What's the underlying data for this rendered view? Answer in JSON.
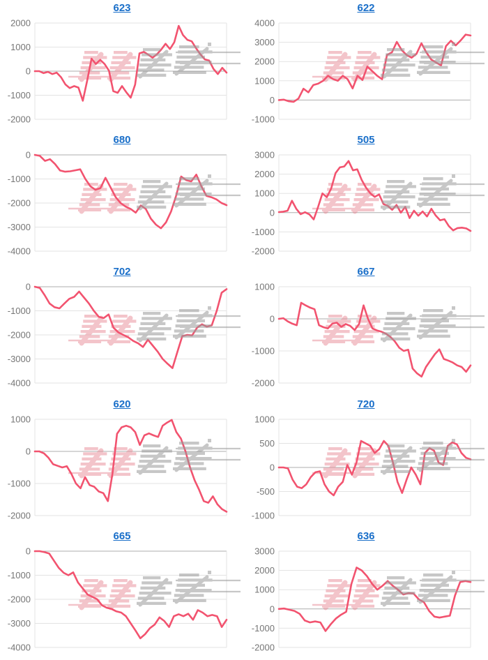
{
  "page": {
    "background": "#ffffff"
  },
  "style": {
    "line_color": "#f2536f",
    "grid_color": "#e3e3e3",
    "baseline_color": "#aeaeae",
    "axis_label_color": "#767676",
    "title_color": "#1a6fc9"
  },
  "watermark": {
    "text": "みんレポ",
    "pink_color": "#e98b97",
    "gray_color": "#9a9a9a"
  },
  "charts": [
    {
      "title": "623",
      "type": "line",
      "y_min": -2000,
      "y_max": 2000,
      "y_step": 1000,
      "values": [
        0,
        0,
        -80,
        -30,
        -120,
        -60,
        -250,
        -550,
        -700,
        -620,
        -680,
        -1230,
        -400,
        520,
        300,
        470,
        300,
        20,
        -830,
        -900,
        -620,
        -880,
        -1100,
        -560,
        740,
        800,
        690,
        560,
        700,
        900,
        1140,
        920,
        1200,
        1880,
        1500,
        1300,
        1240,
        950,
        700,
        490,
        440,
        90,
        -120,
        140,
        -60
      ]
    },
    {
      "title": "622",
      "type": "line",
      "y_min": -1000,
      "y_max": 4000,
      "y_step": 1000,
      "values": [
        0,
        20,
        -60,
        -90,
        80,
        590,
        400,
        780,
        850,
        1000,
        1260,
        1090,
        1000,
        1260,
        1080,
        600,
        1260,
        1040,
        1740,
        1500,
        1260,
        1080,
        2340,
        2480,
        3020,
        2590,
        2340,
        2200,
        2400,
        2950,
        2480,
        2100,
        1950,
        1800,
        2800,
        3080,
        2840,
        3100,
        3400,
        3350
      ]
    },
    {
      "title": "680",
      "type": "line",
      "y_min": -4000,
      "y_max": 0,
      "y_step": 1000,
      "values": [
        0,
        -40,
        -250,
        -180,
        -380,
        -650,
        -700,
        -680,
        -640,
        -600,
        -1000,
        -1300,
        -1450,
        -1380,
        -950,
        -1350,
        -1750,
        -2000,
        -2150,
        -2250,
        -2400,
        -2100,
        -2250,
        -2650,
        -2900,
        -3050,
        -2800,
        -2350,
        -1700,
        -900,
        -1050,
        -1100,
        -820,
        -1300,
        -1700,
        -1760,
        -1850,
        -2000,
        -2090
      ]
    },
    {
      "title": "505",
      "type": "line",
      "y_min": -2000,
      "y_max": 3000,
      "y_step": 1000,
      "values": [
        30,
        50,
        100,
        620,
        200,
        -80,
        20,
        -90,
        -350,
        300,
        1000,
        800,
        1250,
        2050,
        2350,
        2400,
        2680,
        2200,
        2250,
        1700,
        1300,
        1000,
        820,
        950,
        450,
        350,
        150,
        400,
        0,
        300,
        -280,
        100,
        -160,
        60,
        -200,
        200,
        -150,
        -400,
        -340,
        -700,
        -920,
        -800,
        -780,
        -820,
        -950
      ]
    },
    {
      "title": "702",
      "type": "line",
      "y_min": -4000,
      "y_max": 0,
      "y_step": 1000,
      "values": [
        0,
        -50,
        -350,
        -700,
        -850,
        -900,
        -700,
        -500,
        -420,
        -200,
        -450,
        -700,
        -1000,
        -1250,
        -1300,
        -1150,
        -1700,
        -1900,
        -2000,
        -2100,
        -2250,
        -2350,
        -2500,
        -2200,
        -2450,
        -2700,
        -3000,
        -3200,
        -3380,
        -2700,
        -2050,
        -2000,
        -2020,
        -1700,
        -1560,
        -1660,
        -1600,
        -1000,
        -250,
        -100
      ]
    },
    {
      "title": "667",
      "type": "line",
      "y_min": -2000,
      "y_max": 1000,
      "y_step": 1000,
      "values": [
        0,
        20,
        -80,
        -150,
        -200,
        500,
        420,
        350,
        300,
        -200,
        -260,
        -300,
        -150,
        -120,
        -250,
        -160,
        -220,
        -350,
        -160,
        420,
        0,
        -300,
        -360,
        -400,
        -460,
        -560,
        -700,
        -900,
        -1000,
        -960,
        -1550,
        -1700,
        -1800,
        -1500,
        -1300,
        -1100,
        -950,
        -1250,
        -1300,
        -1360,
        -1450,
        -1500,
        -1650,
        -1450
      ]
    },
    {
      "title": "620",
      "type": "line",
      "y_min": -2000,
      "y_max": 1000,
      "y_step": 1000,
      "values": [
        0,
        0,
        -60,
        -200,
        -400,
        -450,
        -500,
        -460,
        -700,
        -1000,
        -1150,
        -800,
        -1050,
        -1100,
        -1250,
        -1300,
        -1550,
        -700,
        550,
        750,
        800,
        750,
        600,
        200,
        500,
        560,
        500,
        450,
        800,
        900,
        980,
        600,
        400,
        0,
        -500,
        -900,
        -1200,
        -1550,
        -1600,
        -1400,
        -1650,
        -1800,
        -1880
      ]
    },
    {
      "title": "720",
      "type": "line",
      "y_min": -1000,
      "y_max": 1000,
      "y_step": 500,
      "values": [
        0,
        0,
        -20,
        -250,
        -400,
        -430,
        -350,
        -200,
        -100,
        -80,
        -350,
        -500,
        -580,
        -400,
        -300,
        50,
        -150,
        100,
        550,
        500,
        450,
        300,
        380,
        550,
        450,
        100,
        -300,
        -530,
        -250,
        0,
        -150,
        -350,
        300,
        400,
        350,
        100,
        50,
        450,
        520,
        480,
        300,
        200,
        170
      ]
    },
    {
      "title": "665",
      "type": "line",
      "y_min": -4000,
      "y_max": 0,
      "y_step": 1000,
      "values": [
        0,
        0,
        -40,
        -100,
        -400,
        -700,
        -900,
        -1000,
        -880,
        -1300,
        -1550,
        -1800,
        -1900,
        -2000,
        -2250,
        -2350,
        -2400,
        -2500,
        -2550,
        -2700,
        -3000,
        -3300,
        -3620,
        -3450,
        -3200,
        -3050,
        -2750,
        -2900,
        -3150,
        -2700,
        -2620,
        -2700,
        -2600,
        -2850,
        -2450,
        -2550,
        -2700,
        -2650,
        -2700,
        -3150,
        -2850
      ]
    },
    {
      "title": "636",
      "type": "line",
      "y_min": -2000,
      "y_max": 3000,
      "y_step": 1000,
      "values": [
        0,
        20,
        -40,
        -100,
        -250,
        -600,
        -700,
        -650,
        -700,
        -1150,
        -800,
        -500,
        -300,
        -150,
        1300,
        2150,
        2000,
        1700,
        1300,
        1000,
        1200,
        1450,
        1200,
        1000,
        750,
        820,
        800,
        500,
        350,
        -100,
        -400,
        -450,
        -400,
        -350,
        700,
        1400,
        1450,
        1400
      ]
    }
  ]
}
